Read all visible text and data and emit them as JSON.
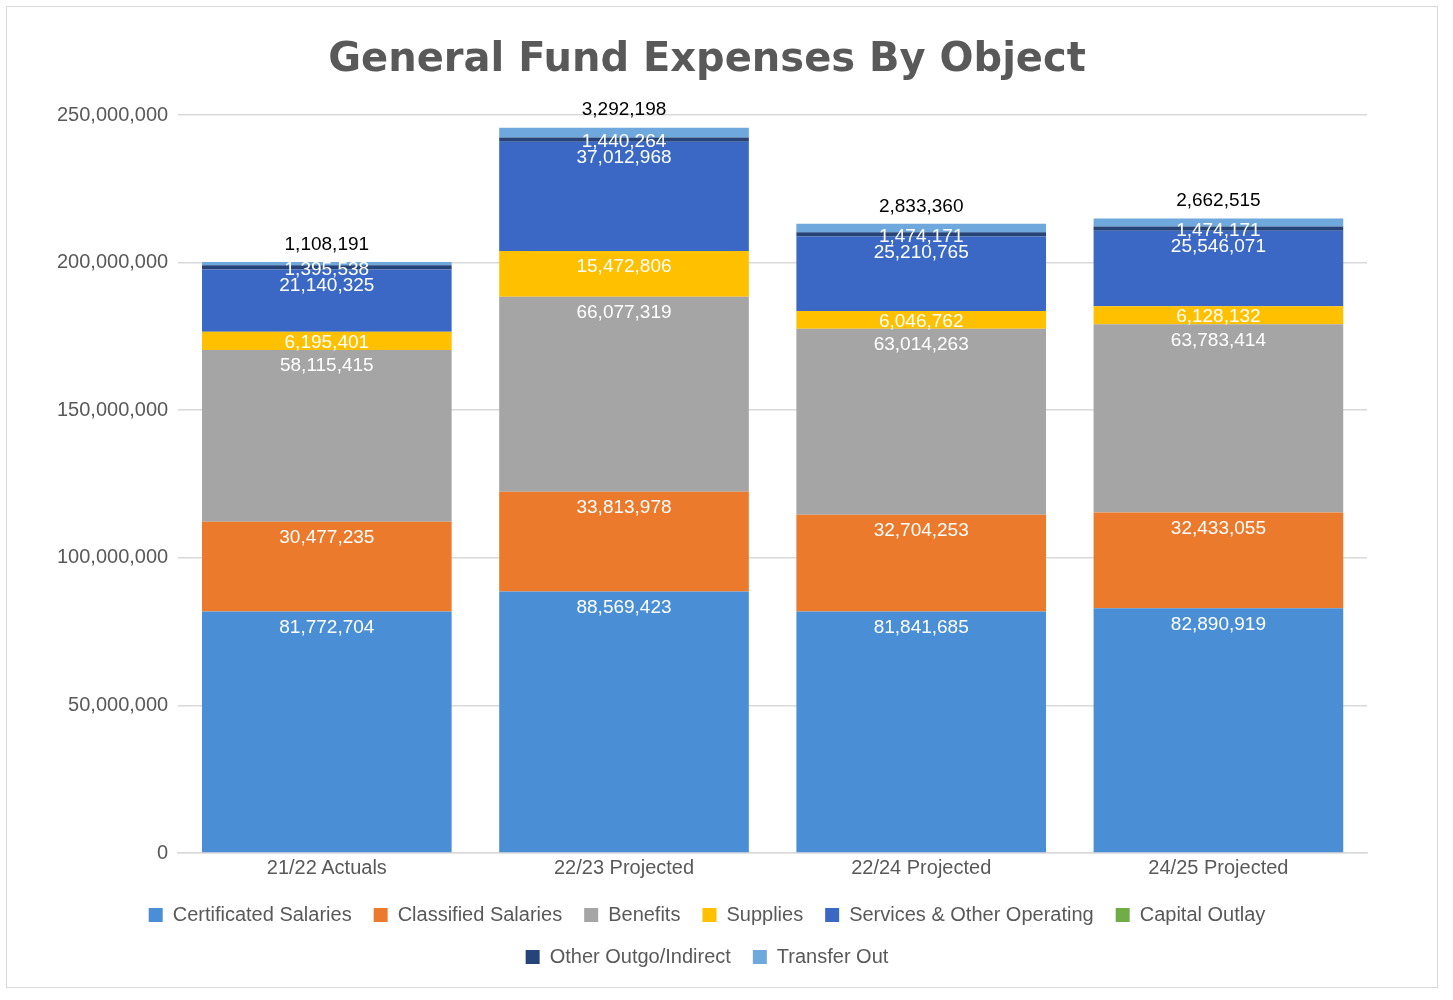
{
  "chart_data": {
    "type": "bar",
    "title": "General Fund Expenses By Object",
    "stacked": true,
    "categories": [
      "21/22 Actuals",
      "22/23 Projected",
      "22/24 Projected",
      "24/25 Projected"
    ],
    "series": [
      {
        "name": "Certificated Salaries",
        "color": "#4a8fd6",
        "values": [
          81772704,
          88569423,
          81841685,
          82890919
        ],
        "value_labels": [
          "81,772,704",
          "88,569,423",
          "81,841,685",
          "82,890,919"
        ]
      },
      {
        "name": "Classified Salaries",
        "color": "#ec7a2c",
        "values": [
          30477235,
          33813978,
          32704253,
          32433055
        ],
        "value_labels": [
          "30,477,235",
          "33,813,978",
          "32,704,253",
          "32,433,055"
        ]
      },
      {
        "name": "Benefits",
        "color": "#a5a5a5",
        "values": [
          58115415,
          66077319,
          63014263,
          63783414
        ],
        "value_labels": [
          "58,115,415",
          "66,077,319",
          "63,014,263",
          "63,783,414"
        ]
      },
      {
        "name": "Supplies",
        "color": "#ffc000",
        "values": [
          6195401,
          15472806,
          6046762,
          6128132
        ],
        "value_labels": [
          "6,195,401",
          "15,472,806",
          "6,046,762",
          "6,128,132"
        ]
      },
      {
        "name": "Services & Other Operating",
        "color": "#3a68c4",
        "values": [
          21140325,
          37012968,
          25210765,
          25546071
        ],
        "value_labels": [
          "21,140,325",
          "37,012,968",
          "25,210,765",
          "25,546,071"
        ]
      },
      {
        "name": "Capital Outlay",
        "color": "#70ad47",
        "values": [
          null,
          null,
          null,
          null
        ]
      },
      {
        "name": "Other Outgo/Indirect",
        "color": "#264478",
        "values": [
          1395538,
          1440264,
          1474171,
          1474171
        ],
        "value_labels": [
          "1,395,538",
          "1,440,264",
          "1,474,171",
          "1,474,171"
        ]
      },
      {
        "name": "Transfer Out",
        "color": "#6fa8dc",
        "values": [
          1108191,
          3292198,
          2833360,
          2662515
        ],
        "value_labels": [
          "1,108,191",
          "3,292,198",
          "2,833,360",
          "2,662,515"
        ]
      }
    ],
    "ylim": [
      0,
      250000000
    ],
    "yticks": [
      {
        "value": 0,
        "label": "0"
      },
      {
        "value": 50000000,
        "label": "50,000,000"
      },
      {
        "value": 100000000,
        "label": "100,000,000"
      },
      {
        "value": 150000000,
        "label": "150,000,000"
      },
      {
        "value": 200000000,
        "label": "200,000,000"
      },
      {
        "value": 250000000,
        "label": "250,000,000"
      }
    ],
    "grid": "y",
    "legend": "bottom"
  }
}
